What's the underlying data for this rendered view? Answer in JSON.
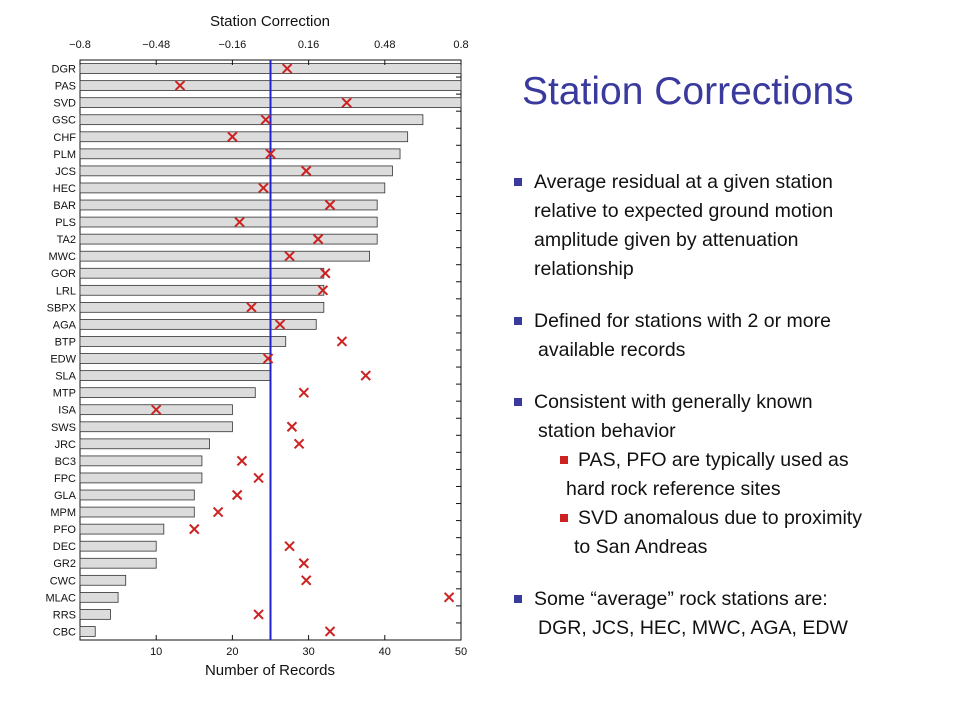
{
  "chart_data": {
    "type": "bar",
    "title": "Station Correction",
    "xlabel": "Number of Records",
    "top_axis_ticks": [
      "−0.8",
      "−0.48",
      "−0.16",
      "0.16",
      "0.48",
      "0.8"
    ],
    "top_axis_range": [
      -0.8,
      0.8
    ],
    "bottom_axis_ticks": [
      "10",
      "20",
      "30",
      "40",
      "50"
    ],
    "bottom_axis_range": [
      0,
      50
    ],
    "zero_line_color": "#2222cc",
    "bar_color": "#dcdcdc",
    "marker_color": "#cc2222",
    "categories": [
      "DGR",
      "PAS",
      "SVD",
      "GSC",
      "CHF",
      "PLM",
      "JCS",
      "HEC",
      "BAR",
      "PLS",
      "TA2",
      "MWC",
      "GOR",
      "LRL",
      "SBPX",
      "AGA",
      "BTP",
      "EDW",
      "SLA",
      "MTP",
      "ISA",
      "SWS",
      "JRC",
      "BC3",
      "FPC",
      "GLA",
      "MPM",
      "PFO",
      "DEC",
      "GR2",
      "CWC",
      "MLAC",
      "RRS",
      "CBC"
    ],
    "series": [
      {
        "values": [
          50,
          50,
          50,
          45,
          43,
          42,
          41,
          40,
          39,
          39,
          39,
          38,
          32,
          32,
          32,
          31,
          27,
          25,
          25,
          23,
          20,
          20,
          17,
          16,
          16,
          15,
          15,
          11,
          10,
          10,
          6,
          5,
          4,
          2
        ]
      },
      {
        "values": [
          0.07,
          -0.38,
          0.32,
          -0.02,
          -0.16,
          0,
          0.15,
          -0.03,
          0.25,
          -0.13,
          0.2,
          0.08,
          0.23,
          0.22,
          -0.08,
          0.04,
          0.3,
          -0.01,
          0.4,
          0.14,
          -0.48,
          0.09,
          0.12,
          -0.12,
          -0.05,
          -0.14,
          -0.22,
          -0.32,
          0.08,
          0.14,
          0.15,
          0.75,
          -0.05,
          0.25
        ]
      }
    ]
  },
  "slide": {
    "title": "Station Corrections",
    "bullets": [
      {
        "level": 1,
        "lines": [
          "Average residual at a given station",
          "relative to expected ground motion",
          "amplitude given by attenuation",
          "relationship"
        ]
      },
      {
        "level": 1,
        "lines": [
          "Defined for stations with 2 or more",
          "available records"
        ]
      },
      {
        "level": 1,
        "lines": [
          "Consistent with generally known",
          "station behavior"
        ]
      },
      {
        "level": 2,
        "lines": [
          "PAS, PFO are typically used as",
          "hard rock reference sites"
        ]
      },
      {
        "level": 2,
        "lines": [
          "SVD anomalous due to proximity",
          "to San Andreas"
        ]
      },
      {
        "level": 1,
        "lines": [
          "Some “average” rock stations are:",
          "DGR, JCS, HEC, MWC, AGA, EDW"
        ]
      }
    ]
  }
}
